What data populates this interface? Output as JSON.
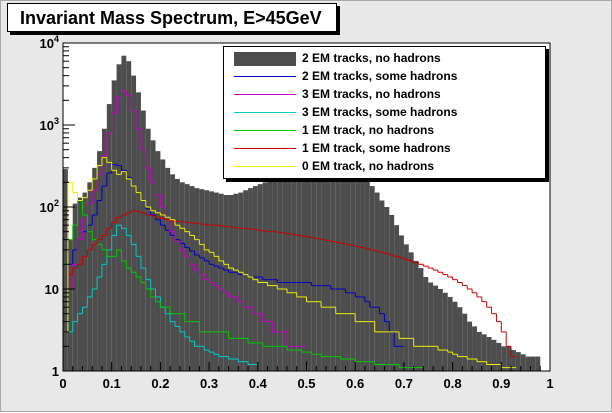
{
  "title": "Invariant Mass Spectrum, E>45GeV",
  "chart_data": {
    "type": "histogram",
    "title": "Invariant Mass Spectrum, E>45GeV",
    "xlabel": "",
    "ylabel": "",
    "xlim": [
      0,
      1
    ],
    "ylim": [
      1,
      10000
    ],
    "yscale": "log",
    "bin_width": 0.01,
    "grid": false,
    "legend_position": "top-right",
    "x_ticks": [
      "0",
      "0.1",
      "0.2",
      "0.3",
      "0.4",
      "0.5",
      "0.6",
      "0.7",
      "0.8",
      "0.9",
      "1"
    ],
    "y_ticks": [
      "1",
      "10",
      "10^2",
      "10^3",
      "10^4"
    ],
    "series": [
      {
        "name": "2 EM tracks, no hadrons",
        "style": "filled",
        "color": "#4d4d4d",
        "x": [
          0.005,
          0.015,
          0.025,
          0.035,
          0.045,
          0.055,
          0.065,
          0.075,
          0.085,
          0.095,
          0.105,
          0.115,
          0.125,
          0.135,
          0.145,
          0.155,
          0.165,
          0.175,
          0.185,
          0.195,
          0.205,
          0.215,
          0.225,
          0.235,
          0.245,
          0.255,
          0.265,
          0.275,
          0.285,
          0.295,
          0.305,
          0.315,
          0.325,
          0.335,
          0.345,
          0.355,
          0.365,
          0.375,
          0.385,
          0.395,
          0.405,
          0.415,
          0.425,
          0.435,
          0.445,
          0.455,
          0.465,
          0.475,
          0.485,
          0.495,
          0.505,
          0.515,
          0.525,
          0.535,
          0.545,
          0.555,
          0.565,
          0.575,
          0.585,
          0.595,
          0.605,
          0.615,
          0.625,
          0.635,
          0.645,
          0.655,
          0.665,
          0.675,
          0.685,
          0.695,
          0.705,
          0.715,
          0.725,
          0.735,
          0.745,
          0.755,
          0.765,
          0.775,
          0.785,
          0.795,
          0.805,
          0.815,
          0.825,
          0.835,
          0.845,
          0.855,
          0.865,
          0.875,
          0.885,
          0.895,
          0.905,
          0.915,
          0.925,
          0.935,
          0.945,
          0.955,
          0.965,
          0.975
        ],
        "values": [
          290,
          40,
          110,
          130,
          150,
          200,
          300,
          480,
          900,
          1800,
          3500,
          5500,
          7000,
          6000,
          4000,
          2500,
          1500,
          900,
          650,
          480,
          380,
          300,
          250,
          220,
          200,
          190,
          180,
          170,
          165,
          160,
          155,
          150,
          145,
          140,
          140,
          145,
          150,
          160,
          170,
          180,
          190,
          200,
          210,
          230,
          250,
          280,
          320,
          380,
          430,
          480,
          520,
          540,
          560,
          550,
          520,
          480,
          430,
          380,
          340,
          300,
          270,
          240,
          210,
          180,
          150,
          120,
          100,
          80,
          60,
          45,
          35,
          28,
          22,
          18,
          14,
          12,
          11,
          10,
          9,
          8,
          7,
          6,
          5,
          4,
          3.5,
          3,
          2.8,
          2.6,
          2.4,
          2.2,
          2,
          2,
          1.8,
          1.7,
          1.6,
          1.5,
          1.5,
          1.5
        ]
      },
      {
        "name": "2 EM tracks, some hadrons",
        "style": "line",
        "color": "#0000cc",
        "x": [
          0.005,
          0.015,
          0.025,
          0.035,
          0.045,
          0.055,
          0.065,
          0.075,
          0.085,
          0.095,
          0.105,
          0.115,
          0.125,
          0.135,
          0.145,
          0.155,
          0.165,
          0.175,
          0.185,
          0.195,
          0.205,
          0.215,
          0.225,
          0.235,
          0.245,
          0.255,
          0.265,
          0.275,
          0.285,
          0.295,
          0.305,
          0.315,
          0.325,
          0.335,
          0.345,
          0.355,
          0.365,
          0.375,
          0.385,
          0.395,
          0.405,
          0.415,
          0.425,
          0.435,
          0.445,
          0.455,
          0.465,
          0.475,
          0.485,
          0.495,
          0.505,
          0.515,
          0.525,
          0.535,
          0.545,
          0.555,
          0.565,
          0.575,
          0.585,
          0.595,
          0.605,
          0.615,
          0.625,
          0.635,
          0.645,
          0.655,
          0.665,
          0.675,
          0.685,
          0.695
        ],
        "values": [
          80,
          20,
          30,
          40,
          50,
          60,
          80,
          120,
          180,
          260,
          330,
          320,
          280,
          230,
          180,
          150,
          120,
          95,
          80,
          70,
          60,
          52,
          45,
          40,
          36,
          32,
          29,
          26,
          24,
          22,
          20,
          19,
          18,
          17,
          16,
          16,
          15,
          15,
          14,
          14,
          14,
          13,
          13,
          13,
          12,
          12,
          12,
          12,
          12,
          12,
          12,
          11,
          11,
          11,
          11,
          10,
          10,
          10,
          9,
          9,
          8,
          8,
          7,
          6,
          6,
          5,
          4,
          3,
          2,
          2
        ]
      },
      {
        "name": "3 EM tracks, no hadrons",
        "style": "line",
        "color": "#cc00cc",
        "x": [
          0.005,
          0.015,
          0.025,
          0.035,
          0.045,
          0.055,
          0.065,
          0.075,
          0.085,
          0.095,
          0.105,
          0.115,
          0.125,
          0.135,
          0.145,
          0.155,
          0.165,
          0.175,
          0.185,
          0.195,
          0.205,
          0.215,
          0.225,
          0.235,
          0.245,
          0.255,
          0.265,
          0.275,
          0.285,
          0.295,
          0.305,
          0.315,
          0.325,
          0.335,
          0.345,
          0.355,
          0.365,
          0.375,
          0.385,
          0.395,
          0.405,
          0.415,
          0.425,
          0.435,
          0.445,
          0.455,
          0.465,
          0.475,
          0.485,
          0.495
        ],
        "values": [
          50,
          10,
          20,
          40,
          70,
          110,
          160,
          250,
          420,
          800,
          1400,
          2200,
          2600,
          2300,
          1500,
          900,
          500,
          300,
          200,
          140,
          100,
          70,
          50,
          38,
          30,
          25,
          20,
          17,
          15,
          13,
          12,
          11,
          10,
          9,
          8,
          8,
          7,
          6,
          6,
          5,
          5,
          4,
          4,
          3,
          3,
          3,
          2,
          2,
          2,
          2
        ]
      },
      {
        "name": "3 EM tracks, some hadrons",
        "style": "line",
        "color": "#00cccc",
        "x": [
          0.005,
          0.015,
          0.025,
          0.035,
          0.045,
          0.055,
          0.065,
          0.075,
          0.085,
          0.095,
          0.105,
          0.115,
          0.125,
          0.135,
          0.145,
          0.155,
          0.165,
          0.175,
          0.185,
          0.195,
          0.205,
          0.215,
          0.225,
          0.235,
          0.245,
          0.255,
          0.265,
          0.275,
          0.285,
          0.295,
          0.305,
          0.315,
          0.325,
          0.335,
          0.345,
          0.355,
          0.365,
          0.375,
          0.385,
          0.395
        ],
        "values": [
          10,
          3,
          4,
          5,
          6,
          8,
          10,
          14,
          20,
          30,
          45,
          60,
          55,
          45,
          35,
          25,
          18,
          13,
          10,
          8,
          6,
          5,
          4,
          3.5,
          3,
          2.6,
          2.3,
          2,
          2,
          1.8,
          1.7,
          1.6,
          1.5,
          1.5,
          1.4,
          1.4,
          1.3,
          1.3,
          1.2,
          1.2
        ]
      },
      {
        "name": "1 EM track, no hadrons",
        "style": "line",
        "color": "#00cc00",
        "x": [
          0.005,
          0.015,
          0.025,
          0.035,
          0.045,
          0.055,
          0.065,
          0.075,
          0.085,
          0.095,
          0.105,
          0.115,
          0.125,
          0.135,
          0.145,
          0.155,
          0.165,
          0.175,
          0.185,
          0.195,
          0.205,
          0.215,
          0.225,
          0.235,
          0.245,
          0.255,
          0.265,
          0.275,
          0.285,
          0.295,
          0.305,
          0.315,
          0.325,
          0.335,
          0.345,
          0.355,
          0.365,
          0.375,
          0.385,
          0.395,
          0.405,
          0.415,
          0.425,
          0.435,
          0.445,
          0.455,
          0.465,
          0.475,
          0.485,
          0.495,
          0.505,
          0.515,
          0.525,
          0.535,
          0.545,
          0.555,
          0.565,
          0.575,
          0.585,
          0.595,
          0.605,
          0.615,
          0.625,
          0.635,
          0.645,
          0.655,
          0.665,
          0.675,
          0.685,
          0.695,
          0.705,
          0.715,
          0.725,
          0.735
        ],
        "values": [
          20,
          40,
          60,
          120,
          80,
          50,
          40,
          35,
          30,
          25,
          25,
          30,
          22,
          18,
          16,
          14,
          12,
          10,
          8,
          7,
          6,
          6,
          5,
          5,
          5,
          4,
          4,
          4,
          3,
          3,
          3,
          3,
          3,
          3,
          2.5,
          2.5,
          2.5,
          2.5,
          2.2,
          2.2,
          2.2,
          2,
          2,
          2,
          2,
          2,
          1.8,
          1.8,
          1.8,
          1.7,
          1.7,
          1.6,
          1.6,
          1.5,
          1.5,
          1.5,
          1.5,
          1.4,
          1.4,
          1.4,
          1.3,
          1.3,
          1.3,
          1.3,
          1.2,
          1.2,
          1.2,
          1.2,
          1.2,
          1.1,
          1.1,
          1.1,
          1.1,
          1.1
        ]
      },
      {
        "name": "1 EM track, some hadrons",
        "style": "line",
        "color": "#cc0000",
        "x": [
          0.005,
          0.015,
          0.025,
          0.035,
          0.045,
          0.055,
          0.065,
          0.075,
          0.085,
          0.095,
          0.105,
          0.115,
          0.125,
          0.135,
          0.145,
          0.155,
          0.165,
          0.175,
          0.185,
          0.195,
          0.205,
          0.215,
          0.225,
          0.235,
          0.245,
          0.255,
          0.265,
          0.275,
          0.285,
          0.295,
          0.305,
          0.315,
          0.325,
          0.335,
          0.345,
          0.355,
          0.365,
          0.375,
          0.385,
          0.395,
          0.405,
          0.415,
          0.425,
          0.435,
          0.445,
          0.455,
          0.465,
          0.475,
          0.485,
          0.495,
          0.505,
          0.515,
          0.525,
          0.535,
          0.545,
          0.555,
          0.565,
          0.575,
          0.585,
          0.595,
          0.605,
          0.615,
          0.625,
          0.635,
          0.645,
          0.655,
          0.665,
          0.675,
          0.685,
          0.695,
          0.705,
          0.715,
          0.725,
          0.735,
          0.745,
          0.755,
          0.765,
          0.775,
          0.785,
          0.795,
          0.805,
          0.815,
          0.825,
          0.835,
          0.845,
          0.855,
          0.865,
          0.875,
          0.885,
          0.895,
          0.905,
          0.915,
          0.925
        ],
        "values": [
          10,
          15,
          18,
          20,
          25,
          30,
          35,
          40,
          45,
          55,
          65,
          75,
          80,
          85,
          90,
          88,
          85,
          80,
          78,
          75,
          72,
          70,
          68,
          67,
          66,
          65,
          64,
          63,
          62,
          61,
          60,
          60,
          59,
          58,
          57,
          56,
          55,
          55,
          54,
          53,
          52,
          51,
          50,
          50,
          49,
          48,
          47,
          46,
          45,
          44,
          43,
          42,
          41,
          40,
          39,
          38,
          37,
          36,
          35,
          34,
          33,
          32,
          31,
          30,
          29,
          28,
          27,
          26,
          25,
          24,
          23,
          22,
          21,
          20,
          19,
          18,
          17,
          16,
          15,
          14,
          13,
          12,
          11,
          10,
          9,
          8,
          7,
          6,
          5,
          4,
          3,
          2,
          1.5
        ]
      },
      {
        "name": "0 EM track, no hadrons",
        "style": "line",
        "color": "#eeee00",
        "x": [
          0.005,
          0.015,
          0.025,
          0.035,
          0.045,
          0.055,
          0.065,
          0.075,
          0.085,
          0.095,
          0.105,
          0.115,
          0.125,
          0.135,
          0.145,
          0.155,
          0.165,
          0.175,
          0.185,
          0.195,
          0.205,
          0.215,
          0.225,
          0.235,
          0.245,
          0.255,
          0.265,
          0.275,
          0.285,
          0.295,
          0.305,
          0.315,
          0.325,
          0.335,
          0.345,
          0.355,
          0.365,
          0.375,
          0.385,
          0.395,
          0.405,
          0.415,
          0.425,
          0.435,
          0.445,
          0.455,
          0.465,
          0.475,
          0.485,
          0.495,
          0.505,
          0.515,
          0.525,
          0.535,
          0.545,
          0.555,
          0.565,
          0.575,
          0.585,
          0.595,
          0.605,
          0.615,
          0.625,
          0.635,
          0.645,
          0.655,
          0.665,
          0.675,
          0.685,
          0.695,
          0.705,
          0.715,
          0.725,
          0.735,
          0.745,
          0.755,
          0.765,
          0.775,
          0.785,
          0.795,
          0.805,
          0.815,
          0.825,
          0.835,
          0.845,
          0.855,
          0.865,
          0.875,
          0.885,
          0.895,
          0.905,
          0.915,
          0.925
        ],
        "values": [
          3,
          200,
          150,
          120,
          130,
          160,
          220,
          320,
          400,
          350,
          280,
          250,
          270,
          220,
          180,
          150,
          120,
          100,
          90,
          85,
          80,
          75,
          70,
          60,
          55,
          50,
          45,
          40,
          35,
          30,
          28,
          25,
          22,
          20,
          18,
          17,
          16,
          15,
          14,
          13,
          12,
          12,
          11,
          11,
          10,
          10,
          9,
          9,
          8,
          8,
          7,
          7,
          7,
          6,
          6,
          6,
          5,
          5,
          5,
          5,
          4,
          4,
          4,
          4,
          3,
          3,
          3,
          3,
          3,
          2.5,
          2.5,
          2.5,
          2,
          2,
          2,
          2,
          2,
          1.8,
          1.8,
          1.7,
          1.6,
          1.5,
          1.5,
          1.4,
          1.4,
          1.3,
          1.3,
          1.2,
          1.2,
          1.2,
          1.1,
          1.1,
          1.1
        ]
      }
    ]
  }
}
